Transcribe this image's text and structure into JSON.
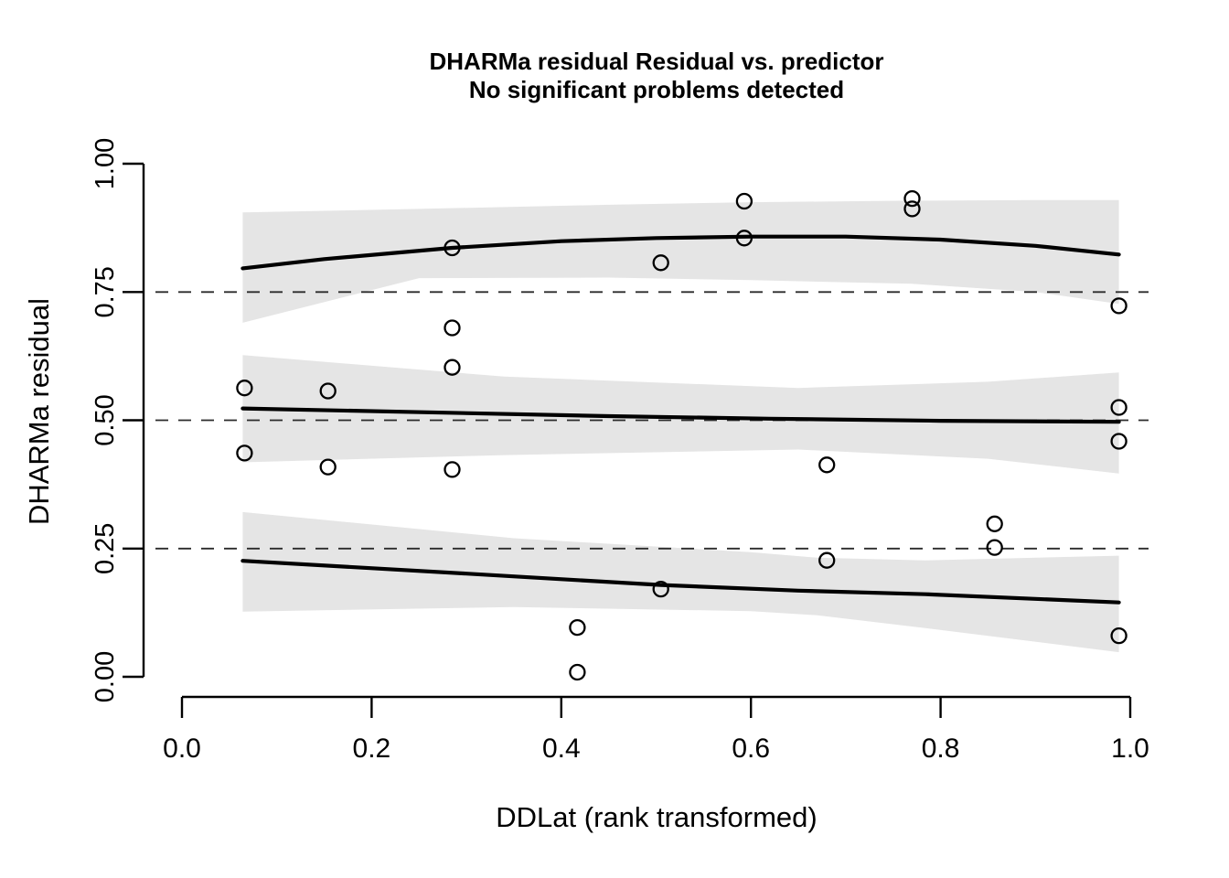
{
  "chart_data": {
    "type": "scatter",
    "title": "DHARMa residual Residual vs. predictor",
    "subtitle": "No significant problems detected",
    "xlabel": "DDLat (rank transformed)",
    "ylabel": "DHARMa residual",
    "xlim": [
      0.0,
      1.0
    ],
    "ylim": [
      0.0,
      1.0
    ],
    "grid": false,
    "legend": "none",
    "x_ticks": {
      "values": [
        0.0,
        0.2,
        0.4,
        0.6,
        0.8,
        1.0
      ],
      "labels": [
        "0.0",
        "0.2",
        "0.4",
        "0.6",
        "0.8",
        "1.0"
      ]
    },
    "y_ticks": {
      "values": [
        0.0,
        0.25,
        0.5,
        0.75,
        1.0
      ],
      "labels": [
        "0.00",
        "0.25",
        "0.50",
        "0.75",
        "1.00"
      ]
    },
    "reference_lines": [
      0.25,
      0.5,
      0.75
    ],
    "points": [
      [
        0.066,
        0.563
      ],
      [
        0.066,
        0.436
      ],
      [
        0.154,
        0.557
      ],
      [
        0.154,
        0.409
      ],
      [
        0.285,
        0.836
      ],
      [
        0.285,
        0.68
      ],
      [
        0.285,
        0.603
      ],
      [
        0.285,
        0.404
      ],
      [
        0.417,
        0.096
      ],
      [
        0.417,
        0.009
      ],
      [
        0.505,
        0.807
      ],
      [
        0.505,
        0.171
      ],
      [
        0.593,
        0.927
      ],
      [
        0.593,
        0.855
      ],
      [
        0.68,
        0.413
      ],
      [
        0.68,
        0.227
      ],
      [
        0.77,
        0.932
      ],
      [
        0.77,
        0.912
      ],
      [
        0.857,
        0.298
      ],
      [
        0.857,
        0.252
      ],
      [
        0.988,
        0.723
      ],
      [
        0.988,
        0.525
      ],
      [
        0.988,
        0.459
      ],
      [
        0.988,
        0.08
      ]
    ],
    "quantile_fits": [
      {
        "quantile": 0.75,
        "line_x": [
          0.064,
          0.15,
          0.285,
          0.4,
          0.5,
          0.6,
          0.7,
          0.8,
          0.9,
          0.988
        ],
        "line_y": [
          0.796,
          0.814,
          0.836,
          0.849,
          0.855,
          0.858,
          0.858,
          0.852,
          0.84,
          0.823
        ],
        "band_x": [
          0.064,
          0.25,
          0.45,
          0.6,
          0.77,
          0.9,
          0.988
        ],
        "band_hi": [
          0.905,
          0.912,
          0.92,
          0.925,
          0.928,
          0.929,
          0.929
        ],
        "band_lo": [
          0.69,
          0.777,
          0.778,
          0.773,
          0.766,
          0.75,
          0.727
        ]
      },
      {
        "quantile": 0.5,
        "line_x": [
          0.064,
          0.45,
          0.62,
          0.8,
          0.988
        ],
        "line_y": [
          0.523,
          0.508,
          0.503,
          0.499,
          0.497
        ],
        "band_x": [
          0.064,
          0.34,
          0.65,
          0.85,
          0.988
        ],
        "band_hi": [
          0.627,
          0.585,
          0.563,
          0.575,
          0.593
        ],
        "band_lo": [
          0.418,
          0.432,
          0.443,
          0.425,
          0.396
        ]
      },
      {
        "quantile": 0.25,
        "line_x": [
          0.064,
          0.3,
          0.505,
          0.65,
          0.784,
          0.988
        ],
        "line_y": [
          0.226,
          0.201,
          0.179,
          0.168,
          0.161,
          0.145
        ],
        "band_x": [
          0.064,
          0.35,
          0.6,
          0.67,
          0.784,
          0.988
        ],
        "band_hi": [
          0.321,
          0.27,
          0.243,
          0.232,
          0.227,
          0.236
        ],
        "band_lo": [
          0.127,
          0.136,
          0.128,
          0.12,
          0.095,
          0.048
        ]
      }
    ],
    "colors": {
      "band": "#e5e5e5",
      "fit_line": "#000000",
      "point_stroke": "#000000",
      "reference_dash": "#2b2b2b",
      "axis": "#000000",
      "background": "#ffffff"
    }
  }
}
